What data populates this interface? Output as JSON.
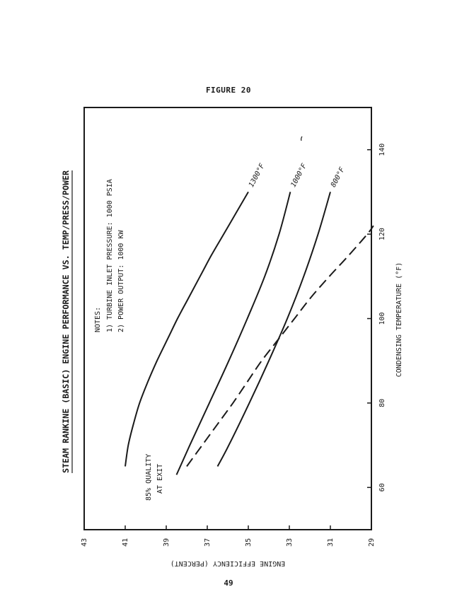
{
  "figure_label": "FIGURE 20",
  "page_number": "49",
  "notes": {
    "heading": "NOTES:",
    "items": [
      "1)  TURBINE INLET PRESSURE:  1000 PSIA",
      "2)  POWER OUTPUT:  1000 KW"
    ]
  },
  "quality_annotation": [
    "85% QUALITY",
    "AT EXIT"
  ],
  "chart_data": {
    "type": "line",
    "title": "STEAM RANKINE (BASIC) ENGINE PERFORMANCE VS. TEMP/PRESS/POWER",
    "xlabel": "CONDENSING TEMPERATURE (°F)",
    "ylabel": "ENGINE EFFICIENCY (PERCENT)",
    "xlim": [
      50,
      150
    ],
    "ylim": [
      29,
      43
    ],
    "x_ticks": [
      "60",
      "80",
      "100",
      "120",
      "140"
    ],
    "y_ticks": [
      "43",
      "41",
      "39",
      "37",
      "35",
      "33",
      "31",
      "29"
    ],
    "grid": false,
    "legend": "none",
    "series": [
      {
        "name": "1300°F",
        "style": "solid",
        "x": [
          65,
          70,
          75,
          80,
          85,
          90,
          95,
          100,
          105,
          110,
          115,
          120,
          125,
          130
        ],
        "y": [
          41.0,
          40.85,
          40.6,
          40.3,
          39.9,
          39.45,
          38.95,
          38.45,
          37.9,
          37.35,
          36.8,
          36.2,
          35.6,
          35.0
        ]
      },
      {
        "name": "1000°F",
        "style": "solid",
        "x": [
          63,
          70,
          80,
          90,
          100,
          110,
          120,
          130
        ],
        "y": [
          38.5,
          37.85,
          36.9,
          35.95,
          35.05,
          34.2,
          33.5,
          32.95
        ]
      },
      {
        "name": "800°F",
        "style": "solid",
        "x": [
          65,
          70,
          80,
          90,
          100,
          110,
          120,
          130
        ],
        "y": [
          36.5,
          35.95,
          34.95,
          34.0,
          33.1,
          32.3,
          31.6,
          31.0
        ]
      },
      {
        "name": "85% QUALITY AT EXIT",
        "style": "dashed",
        "x": [
          65,
          70,
          75,
          80,
          85,
          90,
          95,
          100,
          105,
          110,
          115,
          120,
          122
        ],
        "y": [
          38.0,
          37.25,
          36.5,
          35.75,
          35.05,
          34.35,
          33.55,
          32.75,
          31.95,
          31.05,
          30.1,
          29.2,
          28.9
        ]
      }
    ],
    "curve_labels": [
      "1300°F",
      "1000°F",
      "800°F"
    ]
  }
}
